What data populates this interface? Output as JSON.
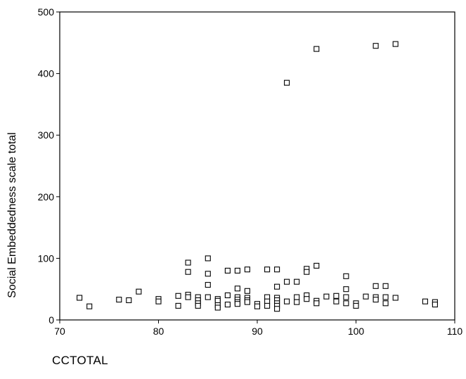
{
  "chart_data": {
    "type": "scatter",
    "title": "",
    "xlabel": "CCTOTAL",
    "ylabel": "Social Embeddedness scale total",
    "xlim": [
      70,
      110
    ],
    "ylim": [
      0,
      500
    ],
    "xticks": [
      70,
      80,
      90,
      100,
      110
    ],
    "yticks": [
      0,
      100,
      200,
      300,
      400,
      500
    ],
    "marker": "open-square",
    "grid": false,
    "points": [
      [
        72,
        36
      ],
      [
        73,
        22
      ],
      [
        76,
        33
      ],
      [
        77,
        32
      ],
      [
        78,
        46
      ],
      [
        80,
        34
      ],
      [
        80,
        30
      ],
      [
        82,
        39
      ],
      [
        82,
        23
      ],
      [
        83,
        93
      ],
      [
        83,
        78
      ],
      [
        83,
        41
      ],
      [
        83,
        37
      ],
      [
        84,
        37
      ],
      [
        84,
        32
      ],
      [
        84,
        27
      ],
      [
        84,
        23
      ],
      [
        85,
        100
      ],
      [
        85,
        75
      ],
      [
        85,
        57
      ],
      [
        85,
        37
      ],
      [
        86,
        34
      ],
      [
        86,
        31
      ],
      [
        86,
        24
      ],
      [
        86,
        20
      ],
      [
        87,
        80
      ],
      [
        87,
        40
      ],
      [
        87,
        25
      ],
      [
        88,
        80
      ],
      [
        88,
        51
      ],
      [
        88,
        37
      ],
      [
        88,
        33
      ],
      [
        88,
        29
      ],
      [
        88,
        26
      ],
      [
        89,
        82
      ],
      [
        89,
        47
      ],
      [
        89,
        36
      ],
      [
        89,
        32
      ],
      [
        89,
        29
      ],
      [
        90,
        26
      ],
      [
        90,
        22
      ],
      [
        91,
        82
      ],
      [
        91,
        37
      ],
      [
        91,
        30
      ],
      [
        91,
        23
      ],
      [
        92,
        82
      ],
      [
        92,
        54
      ],
      [
        92,
        36
      ],
      [
        92,
        32
      ],
      [
        92,
        27
      ],
      [
        92,
        23
      ],
      [
        92,
        18
      ],
      [
        93,
        385
      ],
      [
        93,
        62
      ],
      [
        93,
        30
      ],
      [
        94,
        62
      ],
      [
        94,
        37
      ],
      [
        94,
        29
      ],
      [
        95,
        83
      ],
      [
        95,
        78
      ],
      [
        95,
        40
      ],
      [
        95,
        34
      ],
      [
        96,
        440
      ],
      [
        96,
        88
      ],
      [
        96,
        31
      ],
      [
        96,
        27
      ],
      [
        97,
        38
      ],
      [
        98,
        39
      ],
      [
        98,
        30
      ],
      [
        99,
        71
      ],
      [
        99,
        50
      ],
      [
        99,
        37
      ],
      [
        99,
        27
      ],
      [
        100,
        27
      ],
      [
        100,
        23
      ],
      [
        101,
        38
      ],
      [
        102,
        445
      ],
      [
        102,
        55
      ],
      [
        102,
        37
      ],
      [
        102,
        33
      ],
      [
        103,
        55
      ],
      [
        103,
        37
      ],
      [
        103,
        27
      ],
      [
        104,
        448
      ],
      [
        104,
        36
      ],
      [
        107,
        30
      ],
      [
        108,
        29
      ],
      [
        108,
        25
      ]
    ]
  }
}
